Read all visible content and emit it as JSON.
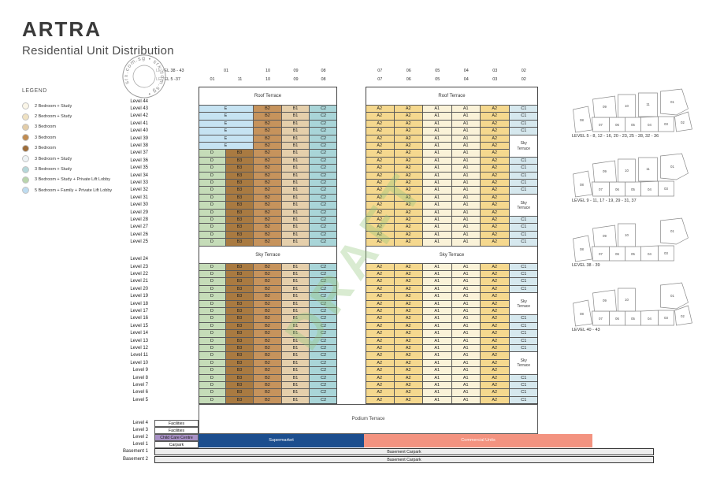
{
  "title": "ARTRA",
  "subtitle": "Residential Unit Distribution",
  "legend": {
    "title": "LEGEND",
    "items": [
      {
        "color": "#fbf6e8",
        "label": "2 Bedroom + Study"
      },
      {
        "color": "#f0e2c2",
        "label": "2 Bedroom + Study"
      },
      {
        "color": "#e3cda8",
        "label": "3 Bedroom"
      },
      {
        "color": "#c08c52",
        "label": "3 Bedroom"
      },
      {
        "color": "#9d6d3a",
        "label": "3 Bedroom"
      },
      {
        "color": "#eef3f5",
        "label": "3 Bedroom + Study"
      },
      {
        "color": "#b5d7d9",
        "label": "3 Bedroom + Study"
      },
      {
        "color": "#b9d5ac",
        "label": "3 Bedroom + Study + Private Lift Lobby"
      },
      {
        "color": "#bedcf0",
        "label": "5 Bedroom + Family + Private Lift Lobby"
      }
    ]
  },
  "watermarks": {
    "draft_text": "DRAFT",
    "stamp_text_repeat": "srx.com.sg • srx.com.sg •",
    "draft_color": "#92c77b"
  },
  "column_headers": {
    "row1_label": "LEVEL 38 - 43",
    "row2_label": "LEVEL 5 -37",
    "row1_left": [
      "01",
      "10",
      "09",
      "08"
    ],
    "row2_left": [
      "01",
      "11",
      "10",
      "09",
      "08"
    ],
    "row1_right": [
      "07",
      "06",
      "05",
      "04",
      "03",
      "02"
    ],
    "row2_right": [
      "07",
      "06",
      "05",
      "04",
      "03",
      "02"
    ]
  },
  "unit_colors": {
    "A1": "#faf2d8",
    "A2": "#f5d88e",
    "B1": "#e5cfab",
    "B2": "#c6935c",
    "B3": "#a97a41",
    "C1": "#d6e8ee",
    "C2": "#a9d5d8",
    "D": "#c5dcb8",
    "E": "#c6e3f2"
  },
  "unit_grid": {
    "roof_label": "Roof Terrace",
    "sky_band_label": "Sky Terrace",
    "sky_pocket_label": "Sky Terrace",
    "roof_level_label": "Level 44",
    "sky_level_label": "Level 24",
    "left_variants": {
      "E": [
        [
          "E",
          2
        ],
        [
          "B2",
          1
        ],
        [
          "B1",
          1
        ],
        [
          "C2",
          1
        ]
      ],
      "D": [
        [
          "D",
          1
        ],
        [
          "B3",
          1
        ],
        [
          "B2",
          1
        ],
        [
          "B1",
          1
        ],
        [
          "C2",
          1
        ]
      ]
    },
    "right_base": [
      "A2",
      "A2",
      "A1",
      "A1",
      "A2"
    ],
    "rows_upper": [
      {
        "label": "Level 43",
        "left": "E",
        "c1": "C1"
      },
      {
        "label": "Level 42",
        "left": "E",
        "c1": "C1"
      },
      {
        "label": "Level 41",
        "left": "E",
        "c1": "C1"
      },
      {
        "label": "Level 40",
        "left": "E",
        "c1": "C1"
      },
      {
        "label": "Level 39",
        "left": "E",
        "c1": null
      },
      {
        "label": "Level 38",
        "left": "E",
        "c1": null
      },
      {
        "label": "Level 37",
        "left": "D",
        "c1": null
      },
      {
        "label": "Level 36",
        "left": "D",
        "c1": "C1"
      },
      {
        "label": "Level 35",
        "left": "D",
        "c1": "C1"
      },
      {
        "label": "Level 34",
        "left": "D",
        "c1": "C1"
      },
      {
        "label": "Level 33",
        "left": "D",
        "c1": "C1"
      },
      {
        "label": "Level 32",
        "left": "D",
        "c1": "C1"
      },
      {
        "label": "Level 31",
        "left": "D",
        "c1": null
      },
      {
        "label": "Level 30",
        "left": "D",
        "c1": null
      },
      {
        "label": "Level 29",
        "left": "D",
        "c1": null
      },
      {
        "label": "Level 28",
        "left": "D",
        "c1": "C1"
      },
      {
        "label": "Level 27",
        "left": "D",
        "c1": "C1"
      },
      {
        "label": "Level 26",
        "left": "D",
        "c1": "C1"
      },
      {
        "label": "Level 25",
        "left": "D",
        "c1": "C1"
      }
    ],
    "rows_lower": [
      {
        "label": "Level 23",
        "left": "D",
        "c1": "C1"
      },
      {
        "label": "Level 22",
        "left": "D",
        "c1": "C1"
      },
      {
        "label": "Level 21",
        "left": "D",
        "c1": "C1"
      },
      {
        "label": "Level 20",
        "left": "D",
        "c1": "C1"
      },
      {
        "label": "Level 19",
        "left": "D",
        "c1": null
      },
      {
        "label": "Level 18",
        "left": "D",
        "c1": null
      },
      {
        "label": "Level 17",
        "left": "D",
        "c1": null
      },
      {
        "label": "Level 16",
        "left": "D",
        "c1": "C1"
      },
      {
        "label": "Level 15",
        "left": "D",
        "c1": "C1"
      },
      {
        "label": "Level 14",
        "left": "D",
        "c1": "C1"
      },
      {
        "label": "Level 13",
        "left": "D",
        "c1": "C1"
      },
      {
        "label": "Level 12",
        "left": "D",
        "c1": "C1"
      },
      {
        "label": "Level 11",
        "left": "D",
        "c1": null
      },
      {
        "label": "Level 10",
        "left": "D",
        "c1": null
      },
      {
        "label": "Level 9",
        "left": "D",
        "c1": null
      },
      {
        "label": "Level 8",
        "left": "D",
        "c1": "C1"
      },
      {
        "label": "Level 7",
        "left": "D",
        "c1": "C1"
      },
      {
        "label": "Level 6",
        "left": "D",
        "c1": "C1"
      },
      {
        "label": "Level 5",
        "left": "D",
        "c1": "C1"
      }
    ]
  },
  "bottom": {
    "podium_label": "Podium Terrace",
    "rows": [
      {
        "label": "Level 4",
        "box": "Facilities",
        "box_color": "#ffffff"
      },
      {
        "label": "Level 3",
        "box": "Facilities",
        "box_color": "#ffffff"
      },
      {
        "label": "Level 2",
        "box": "Child Care Centre",
        "box_color": "#a891c6"
      },
      {
        "label": "Level 1",
        "box": "Carpark",
        "box_color": "#ffffff"
      }
    ],
    "supermarket": {
      "label": "Supermarket",
      "color": "#1c4e8e"
    },
    "commercial": {
      "label": "Commercial Units",
      "color": "#f39380"
    },
    "basements": [
      {
        "label": "Basement 1",
        "bar": "Basement Carpark"
      },
      {
        "label": "Basement 2",
        "bar": "Basement Carpark"
      }
    ],
    "basement_color": "#ededed"
  },
  "floorplans": [
    {
      "label": "LEVEL 5 - 8, 12 - 16, 20 - 23, 25 - 28, 32 - 36",
      "units": [
        "01",
        "02",
        "03",
        "04",
        "05",
        "06",
        "07",
        "08",
        "09",
        "10",
        "11"
      ]
    },
    {
      "label": "LEVEL 9 - 11, 17 - 19, 29 - 31, 37",
      "units": [
        "01",
        "03",
        "04",
        "05",
        "06",
        "07",
        "08",
        "09",
        "10",
        "11"
      ]
    },
    {
      "label": "LEVEL 38 - 39",
      "units": [
        "01",
        "03",
        "04",
        "05",
        "06",
        "07",
        "08",
        "09",
        "10"
      ]
    },
    {
      "label": "LEVEL 40 - 43",
      "units": [
        "01",
        "02",
        "03",
        "04",
        "05",
        "06",
        "07",
        "08",
        "09",
        "10"
      ]
    }
  ]
}
